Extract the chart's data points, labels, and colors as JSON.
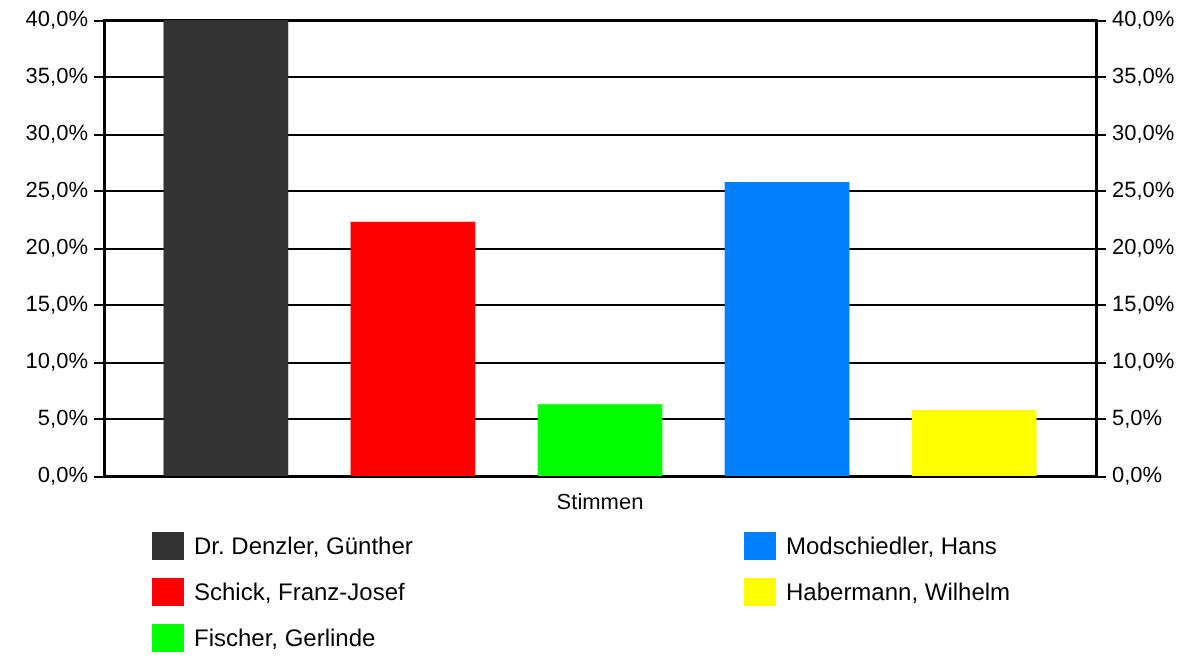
{
  "chart_data": {
    "type": "bar",
    "categories": [
      "Stimmen"
    ],
    "series": [
      {
        "name": "Dr. Denzler, Günther",
        "color": "#333333",
        "values": [
          40.0
        ]
      },
      {
        "name": "Schick, Franz-Josef",
        "color": "#ff0000",
        "values": [
          22.3
        ]
      },
      {
        "name": "Fischer, Gerlinde",
        "color": "#00ff00",
        "values": [
          6.3
        ]
      },
      {
        "name": "Modschiedler, Hans",
        "color": "#0080ff",
        "values": [
          25.8
        ]
      },
      {
        "name": "Habermann, Wilhelm",
        "color": "#ffff00",
        "values": [
          5.8
        ]
      }
    ],
    "ylim": [
      0,
      40
    ],
    "yticks": [
      {
        "value": 0,
        "label": "0,0%"
      },
      {
        "value": 5,
        "label": "5,0%"
      },
      {
        "value": 10,
        "label": "10,0%"
      },
      {
        "value": 15,
        "label": "15,0%"
      },
      {
        "value": 20,
        "label": "20,0%"
      },
      {
        "value": 25,
        "label": "25,0%"
      },
      {
        "value": 30,
        "label": "30,0%"
      },
      {
        "value": 35,
        "label": "35,0%"
      },
      {
        "value": 40,
        "label": "40,0%"
      }
    ],
    "grid": "y",
    "legend": "bottom"
  }
}
